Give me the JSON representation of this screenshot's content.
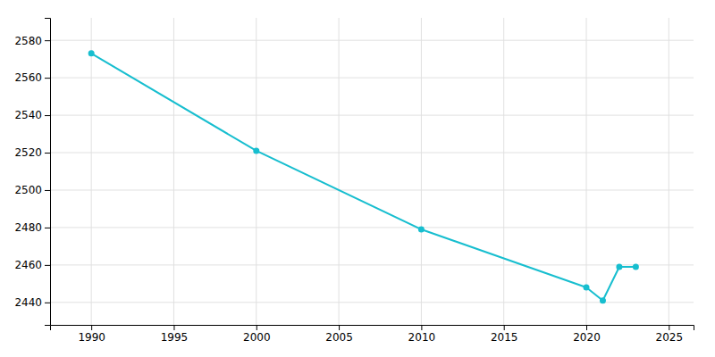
{
  "chart_data": {
    "type": "line",
    "x": [
      1990,
      2000,
      2010,
      2020,
      2021,
      2022,
      2023
    ],
    "values": [
      2573,
      2521,
      2479,
      2448,
      2441,
      2459,
      2459
    ],
    "color": "#17becf",
    "marker": "circle",
    "xlim": [
      1987.5,
      2026.5
    ],
    "ylim": [
      2428,
      2592
    ],
    "xticks": [
      1990,
      1995,
      2000,
      2005,
      2010,
      2015,
      2020,
      2025
    ],
    "yticks": [
      2440,
      2460,
      2480,
      2500,
      2520,
      2540,
      2560,
      2580
    ],
    "grid": true
  }
}
